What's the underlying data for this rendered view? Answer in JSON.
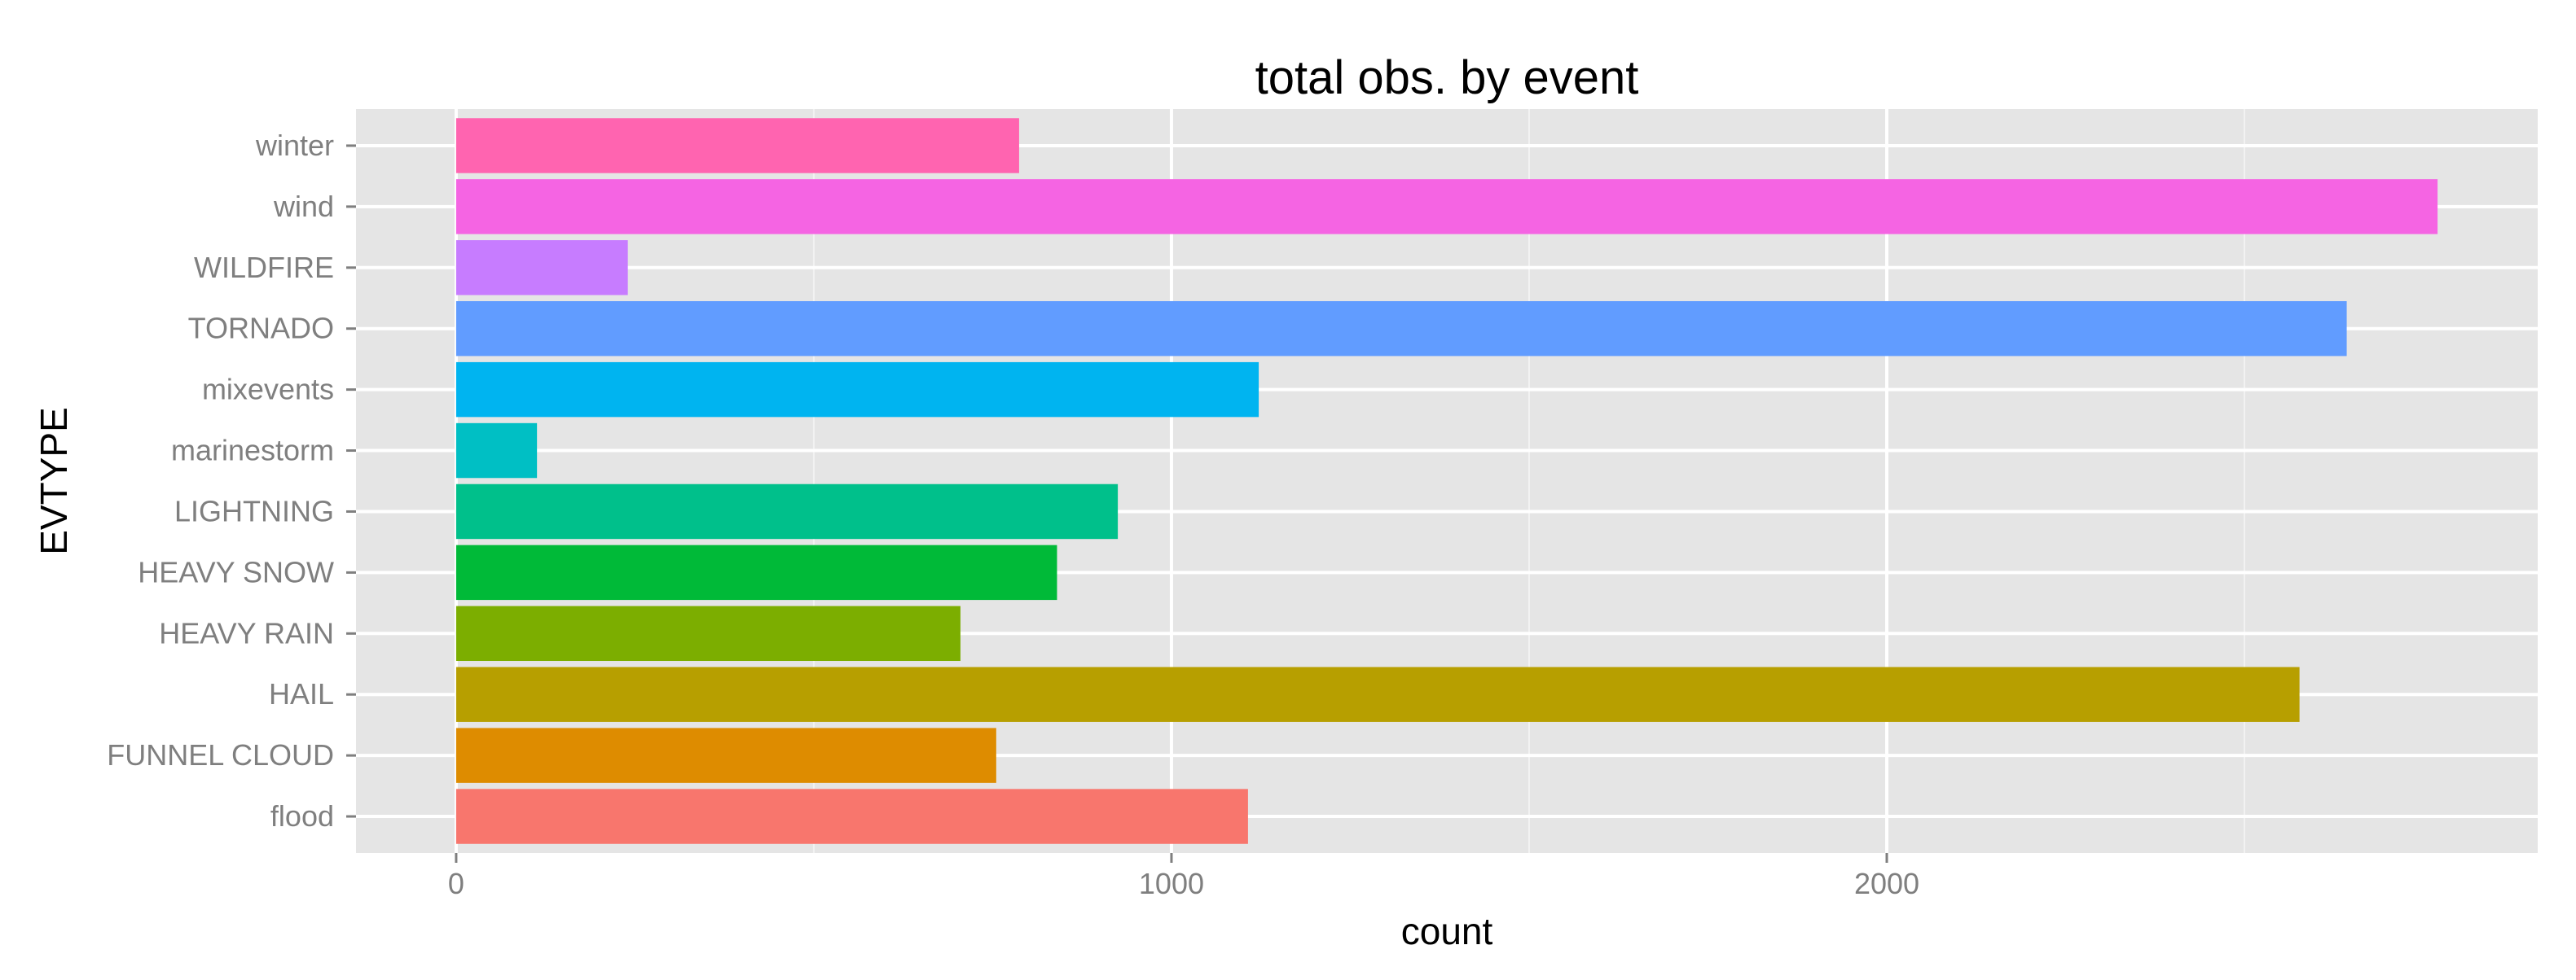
{
  "chart_data": {
    "type": "bar",
    "orientation": "horizontal",
    "title": "total obs. by event",
    "xlabel": "count",
    "ylabel": "EVTYPE",
    "categories": [
      "flood",
      "FUNNEL CLOUD",
      "HAIL",
      "HEAVY RAIN",
      "HEAVY SNOW",
      "LIGHTNING",
      "marinestorm",
      "mixevents",
      "TORNADO",
      "WILDFIRE",
      "wind",
      "winter"
    ],
    "values": [
      1107,
      755,
      2577,
      705,
      840,
      925,
      113,
      1122,
      2643,
      240,
      2770,
      787
    ],
    "colors": [
      "#F8766D",
      "#DE8C00",
      "#B79F00",
      "#7CAE00",
      "#00BA38",
      "#00C08B",
      "#00BFC4",
      "#00B4F0",
      "#619CFF",
      "#C77CFF",
      "#F564E3",
      "#FF64B0"
    ],
    "xlim": [
      -140,
      2910
    ],
    "xticks": [
      0,
      1000,
      2000
    ],
    "xtick_labels": [
      "0",
      "1000",
      "2000"
    ],
    "grid": true,
    "panel_background": "#E5E5E5",
    "grid_color": "#FFFFFF"
  }
}
